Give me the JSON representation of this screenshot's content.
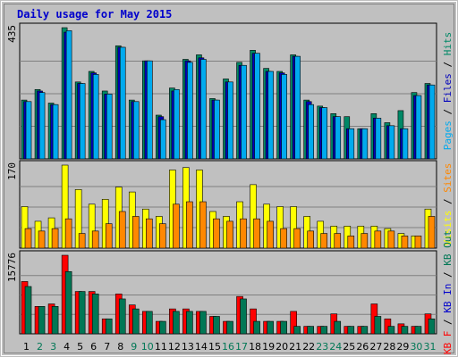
{
  "colors": {
    "background": "#c0c0c0",
    "panel_border": "#000000",
    "grid": "#808080",
    "title": "#0000cc",
    "pages": "#00aaee",
    "files": "#0000bb",
    "hits": "#008866",
    "sites": "#ff8800",
    "visits": "#ffff00",
    "kb_f": "#ff0000",
    "kb_in": "#0000cc",
    "kb_out": "#007755",
    "day_weekday": "#000000",
    "day_weekend": "#007755"
  },
  "chart_data": {
    "type": "bar",
    "title": "Daily usage for May 2015",
    "x": [
      "1",
      "2",
      "3",
      "4",
      "5",
      "6",
      "7",
      "8",
      "9",
      "10",
      "11",
      "12",
      "13",
      "14",
      "15",
      "16",
      "17",
      "18",
      "19",
      "20",
      "21",
      "22",
      "23",
      "24",
      "25",
      "26",
      "27",
      "28",
      "29",
      "30",
      "31"
    ],
    "weekend_days": [
      "2",
      "3",
      "9",
      "10",
      "16",
      "17",
      "23",
      "24",
      "30",
      "31"
    ],
    "panels": [
      {
        "name": "hits-files-pages",
        "ymax_label": "435",
        "ymax": 435,
        "right_labels": [
          {
            "text": "Pages",
            "color_key": "pages"
          },
          {
            "text": "Files",
            "color_key": "files"
          },
          {
            "text": "Hits",
            "color_key": "hits"
          }
        ],
        "series": [
          {
            "name": "Hits",
            "color_key": "hits",
            "values": [
              195,
              230,
              185,
              435,
              255,
              290,
              225,
              375,
              195,
              325,
              145,
              235,
              330,
              345,
              200,
              265,
              320,
              360,
              300,
              290,
              345,
              195,
              175,
              150,
              140,
              100,
              150,
              120,
              160,
              220,
              250
            ]
          },
          {
            "name": "Files",
            "color_key": "files",
            "values": [
              190,
              225,
              180,
              420,
              250,
              285,
              215,
              370,
              190,
              325,
              140,
              225,
              325,
              335,
              195,
              255,
              310,
              350,
              290,
              285,
              340,
              190,
              170,
              140,
              100,
              100,
              135,
              110,
              100,
              210,
              245
            ]
          },
          {
            "name": "Pages",
            "color_key": "pages",
            "values": [
              190,
              220,
              180,
              425,
              250,
              280,
              215,
              370,
              190,
              325,
              130,
              230,
              320,
              330,
              195,
              255,
              310,
              350,
              290,
              280,
              340,
              180,
              170,
              140,
              100,
              100,
              135,
              110,
              100,
              210,
              245
            ]
          }
        ]
      },
      {
        "name": "visits-sites",
        "ymax_label": "170",
        "ymax": 170,
        "right_labels": [
          {
            "text": "Visits",
            "color_key": "visits"
          },
          {
            "text": "Sites",
            "color_key": "sites"
          }
        ],
        "series": [
          {
            "name": "Visits",
            "color_key": "visits",
            "values": [
              85,
              55,
              62,
              170,
              120,
              90,
              100,
              125,
              115,
              80,
              65,
              160,
              165,
              160,
              75,
              65,
              95,
              130,
              90,
              85,
              85,
              65,
              55,
              45,
              45,
              45,
              45,
              40,
              30,
              25,
              80
            ]
          },
          {
            "name": "Sites",
            "color_key": "sites",
            "values": [
              40,
              35,
              40,
              60,
              30,
              35,
              50,
              75,
              65,
              60,
              50,
              90,
              95,
              95,
              60,
              55,
              60,
              60,
              55,
              40,
              40,
              35,
              30,
              30,
              25,
              30,
              35,
              35,
              25,
              25,
              65
            ]
          }
        ]
      },
      {
        "name": "kb",
        "ymax_label": "15776",
        "ymax": 15776,
        "right_labels": [
          {
            "text": "KB F",
            "color_key": "kb_f"
          },
          {
            "text": "KB In",
            "color_key": "kb_in"
          },
          {
            "text": "KB Out",
            "color_key": "kb_out"
          }
        ],
        "series": [
          {
            "name": "KB F",
            "color_key": "kb_f",
            "values": [
              10500,
              5500,
              6000,
              15776,
              8500,
              8500,
              3000,
              8000,
              5800,
              4500,
              2500,
              5000,
              5000,
              4500,
              3500,
              2500,
              7500,
              5000,
              2500,
              2500,
              4500,
              1500,
              1500,
              4000,
              1500,
              1500,
              6000,
              3000,
              2000,
              1500,
              4000
            ]
          },
          {
            "name": "KB Out",
            "color_key": "kb_out",
            "values": [
              9500,
              5500,
              5500,
              12500,
              8500,
              8000,
              3000,
              7000,
              5000,
              4500,
              2500,
              4500,
              4500,
              4500,
              3500,
              2500,
              7000,
              2500,
              2500,
              2500,
              1500,
              1500,
              1500,
              2500,
              1500,
              1500,
              3500,
              1500,
              1500,
              1500,
              3000
            ]
          }
        ]
      }
    ],
    "legend_placement": "right-vertical"
  }
}
